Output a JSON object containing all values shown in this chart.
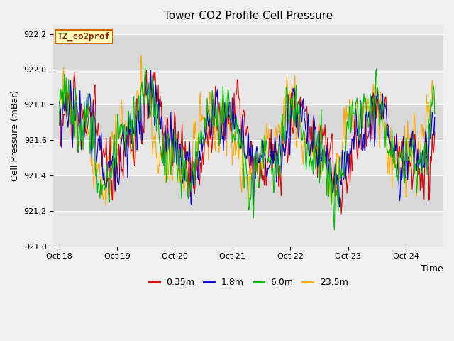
{
  "title": "Tower CO2 Profile Cell Pressure",
  "ylabel": "Cell Pressure (mBar)",
  "xlabel": "Time",
  "legend_label": "TZ_co2prof",
  "series_labels": [
    "0.35m",
    "1.8m",
    "6.0m",
    "23.5m"
  ],
  "series_colors": [
    "#dd0000",
    "#0000cc",
    "#00bb00",
    "#ffaa00"
  ],
  "ylim": [
    921.0,
    922.25
  ],
  "yticks": [
    921.0,
    921.2,
    921.4,
    921.6,
    921.8,
    922.0,
    922.2
  ],
  "xtick_labels": [
    "Oct 18",
    "Oct 19",
    "Oct 20",
    "Oct 21",
    "Oct 22",
    "Oct 23",
    "Oct 24"
  ],
  "xtick_positions": [
    0,
    1,
    2,
    3,
    4,
    5,
    6
  ],
  "plot_bg_color": "#e8e8e8",
  "band_color_light": "#d8d8d8",
  "band_color_dark": "#e8e8e8",
  "outer_bg": "#f0f0f0",
  "n_points": 600,
  "base_pressure": 921.6,
  "linewidth": 0.8,
  "legend_box_facecolor": "#ffffbb",
  "legend_box_edgecolor": "#cc6600",
  "legend_text_color": "#882200",
  "legend_fontsize": 9,
  "title_fontsize": 11,
  "label_fontsize": 9,
  "tick_fontsize": 8,
  "figwidth": 6.4,
  "figheight": 4.8,
  "dpi": 100
}
